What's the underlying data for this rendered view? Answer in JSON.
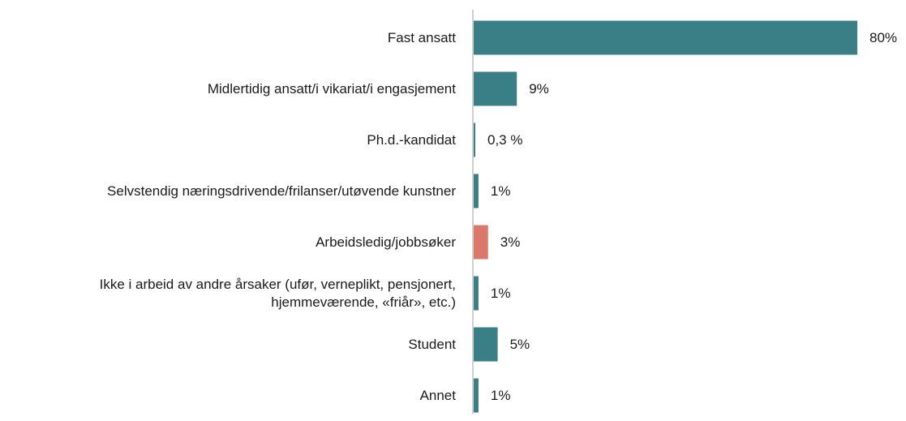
{
  "chart_data": {
    "type": "hbar",
    "categories": [
      "Fast ansatt",
      "Midlertidig ansatt/i vikariat/i engasjement",
      "Ph.d.-kandidat",
      "Selvstendig næringsdrivende/frilanser/utøvende kunstner",
      "Arbeidsledig/jobbsøker",
      "Ikke i arbeid av andre årsaker (ufør, verneplikt, pensjonert, hjemmeværende, «friår», etc.)",
      "Student",
      "Annet"
    ],
    "values": [
      80,
      9,
      0.3,
      1,
      3,
      1,
      5,
      1
    ],
    "value_labels": [
      "80%",
      "9%",
      "0,3 %",
      "1%",
      "3%",
      "1%",
      "5%",
      "1%"
    ],
    "colors": [
      "#3a7f85",
      "#3a7f85",
      "#3a7f85",
      "#3a7f85",
      "#d9786b",
      "#3a7f85",
      "#3a7f85",
      "#3a7f85"
    ],
    "xlim": [
      0,
      80
    ]
  }
}
